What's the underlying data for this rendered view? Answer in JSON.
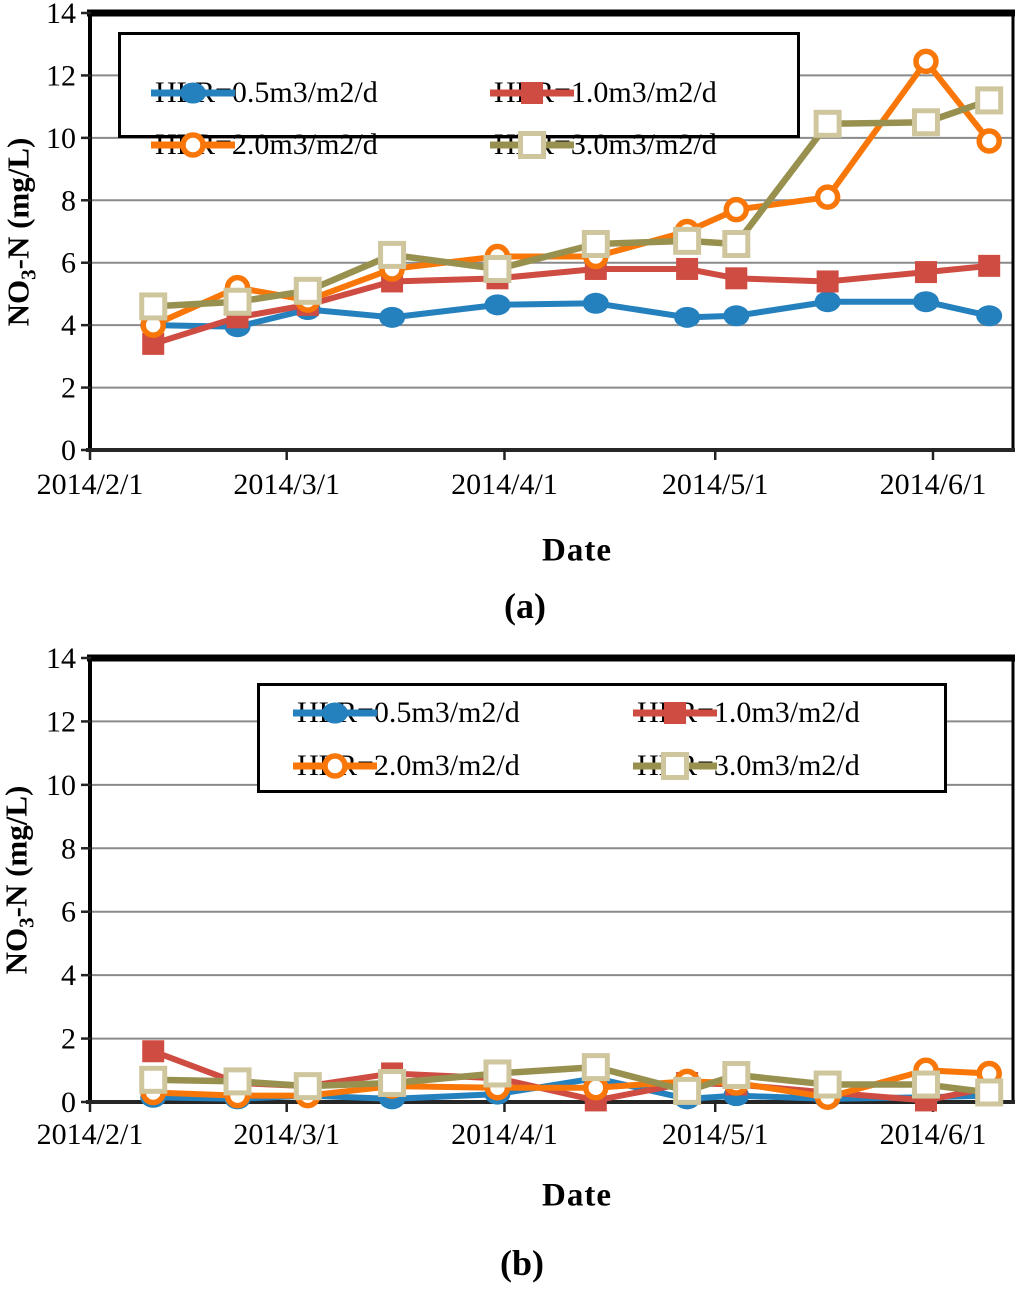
{
  "figure_name": "NO3-N concentration time series at four hydraulic loading rates",
  "chart_data": [
    {
      "type": "line",
      "panel": "a",
      "caption": "(a)",
      "xlabel": "Date",
      "ylabel": "NO3-N (mg/L)",
      "ylabel_parts": [
        {
          "t": "NO"
        },
        {
          "t": "3",
          "sub": true
        },
        {
          "t": "-N (mg/L)"
        }
      ],
      "ylim": [
        0,
        14
      ],
      "yticks": [
        0,
        2,
        4,
        6,
        8,
        10,
        12,
        14
      ],
      "grid": true,
      "legend_position": "top-inside",
      "x_axis": {
        "unit": "days since 2014/2/1",
        "range_days": [
          0,
          131.4
        ],
        "ticks": [
          {
            "day": 0,
            "label": "2014/2/1"
          },
          {
            "day": 28,
            "label": "2014/3/1"
          },
          {
            "day": 59,
            "label": "2014/4/1"
          },
          {
            "day": 89,
            "label": "2014/5/1"
          },
          {
            "day": 120,
            "label": "2014/6/1"
          }
        ]
      },
      "x_days": [
        9,
        21,
        31,
        43,
        58,
        72,
        85,
        92,
        105,
        119,
        128
      ],
      "x_dates": [
        "2014/2/10",
        "2014/2/22",
        "2014/3/4",
        "2014/3/16",
        "2014/3/31",
        "2014/4/14",
        "2014/4/27",
        "2014/5/4",
        "2014/5/17",
        "2014/5/31",
        "2014/6/9"
      ],
      "series": [
        {
          "name": "HLR=0.5m3/m2/d",
          "color": "#2580BE",
          "marker": "circle-filled",
          "marker_border": "#2580BE",
          "values": [
            4.0,
            3.95,
            4.5,
            4.25,
            4.65,
            4.7,
            4.25,
            4.3,
            4.75,
            4.75,
            4.3
          ]
        },
        {
          "name": "HLR=1.0m3/m2/d",
          "color": "#CF4C42",
          "marker": "square-filled",
          "marker_border": "#CF4C42",
          "values": [
            3.4,
            4.25,
            4.65,
            5.4,
            5.5,
            5.8,
            5.8,
            5.5,
            5.4,
            5.7,
            5.9
          ]
        },
        {
          "name": "HLR=2.0m3/m2/d",
          "color": "#F87708",
          "marker": "circle-open",
          "marker_border": "#F87708",
          "values": [
            4.0,
            5.2,
            4.8,
            5.8,
            6.2,
            6.2,
            7.0,
            7.7,
            8.1,
            12.45,
            9.9
          ]
        },
        {
          "name": "HLR=3.0m3/m2/d",
          "color": "#98904E",
          "marker": "square-open",
          "marker_border": "#CFC69D",
          "values": [
            4.6,
            4.75,
            5.1,
            6.25,
            5.8,
            6.6,
            6.7,
            6.6,
            10.45,
            10.5,
            11.2
          ]
        }
      ]
    },
    {
      "type": "line",
      "panel": "b",
      "caption": "(b)",
      "xlabel": "Date",
      "ylabel": "NO3-N (mg/L)",
      "ylabel_parts": [
        {
          "t": "NO"
        },
        {
          "t": "3",
          "sub": true
        },
        {
          "t": "-N (mg/L)"
        }
      ],
      "ylim": [
        0,
        14
      ],
      "yticks": [
        0,
        2,
        4,
        6,
        8,
        10,
        12,
        14
      ],
      "grid": true,
      "legend_position": "top-inside",
      "x_axis": {
        "unit": "days since 2014/2/1",
        "range_days": [
          0,
          131.4
        ],
        "ticks": [
          {
            "day": 0,
            "label": "2014/2/1"
          },
          {
            "day": 28,
            "label": "2014/3/1"
          },
          {
            "day": 59,
            "label": "2014/4/1"
          },
          {
            "day": 89,
            "label": "2014/5/1"
          },
          {
            "day": 120,
            "label": "2014/6/1"
          }
        ]
      },
      "x_days": [
        9,
        21,
        31,
        43,
        58,
        72,
        85,
        92,
        105,
        119,
        128
      ],
      "x_dates": [
        "2014/2/10",
        "2014/2/22",
        "2014/3/4",
        "2014/3/16",
        "2014/3/31",
        "2014/4/14",
        "2014/4/27",
        "2014/5/4",
        "2014/5/17",
        "2014/5/31",
        "2014/6/9"
      ],
      "series": [
        {
          "name": "HLR=0.5m3/m2/d",
          "color": "#2580BE",
          "marker": "circle-filled",
          "marker_border": "#2580BE",
          "values": [
            0.15,
            0.1,
            0.2,
            0.1,
            0.25,
            0.75,
            0.1,
            0.2,
            0.1,
            0.15,
            0.2
          ]
        },
        {
          "name": "HLR=1.0m3/m2/d",
          "color": "#CF4C42",
          "marker": "square-filled",
          "marker_border": "#CF4C42",
          "values": [
            1.6,
            0.6,
            0.5,
            0.9,
            0.75,
            0.05,
            0.6,
            0.55,
            0.3,
            0.05,
            0.45
          ]
        },
        {
          "name": "HLR=2.0m3/m2/d",
          "color": "#F87708",
          "marker": "circle-open",
          "marker_border": "#F87708",
          "values": [
            0.3,
            0.2,
            0.2,
            0.5,
            0.45,
            0.45,
            0.65,
            0.6,
            0.15,
            1.0,
            0.9
          ]
        },
        {
          "name": "HLR=3.0m3/m2/d",
          "color": "#98904E",
          "marker": "square-open",
          "marker_border": "#CFC69D",
          "values": [
            0.7,
            0.65,
            0.5,
            0.6,
            0.9,
            1.1,
            0.35,
            0.85,
            0.55,
            0.55,
            0.3
          ]
        }
      ]
    }
  ]
}
